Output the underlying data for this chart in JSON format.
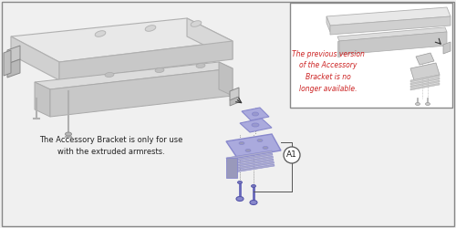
{
  "bg_color": "#f0f0f0",
  "border_color": "#888888",
  "main_text": "The Accessory Bracket is only for use\nwith the extruded armrests.",
  "inset_text": "The previous version\nof the Accessory\nBracket is no\nlonger available.",
  "label_a1": "A1",
  "red_color": "#cc2222",
  "inset_border": "#888888",
  "arm_top_color": "#e8e8e8",
  "arm_top_edge": "#b0b0b0",
  "arm_front_color": "#d0d0d0",
  "arm_front_edge": "#b0b0b0",
  "arm_side_color": "#c8c8c8",
  "rail_top_color": "#dcdcdc",
  "rail_front_color": "#c4c4c4",
  "bracket_blue": "#8888cc",
  "bracket_fill": "#aaaadd",
  "bracket_light": "#ccccee",
  "gray_mid": "#aaaaaa",
  "gray_dark": "#888888",
  "screw_blue": "#6666bb"
}
